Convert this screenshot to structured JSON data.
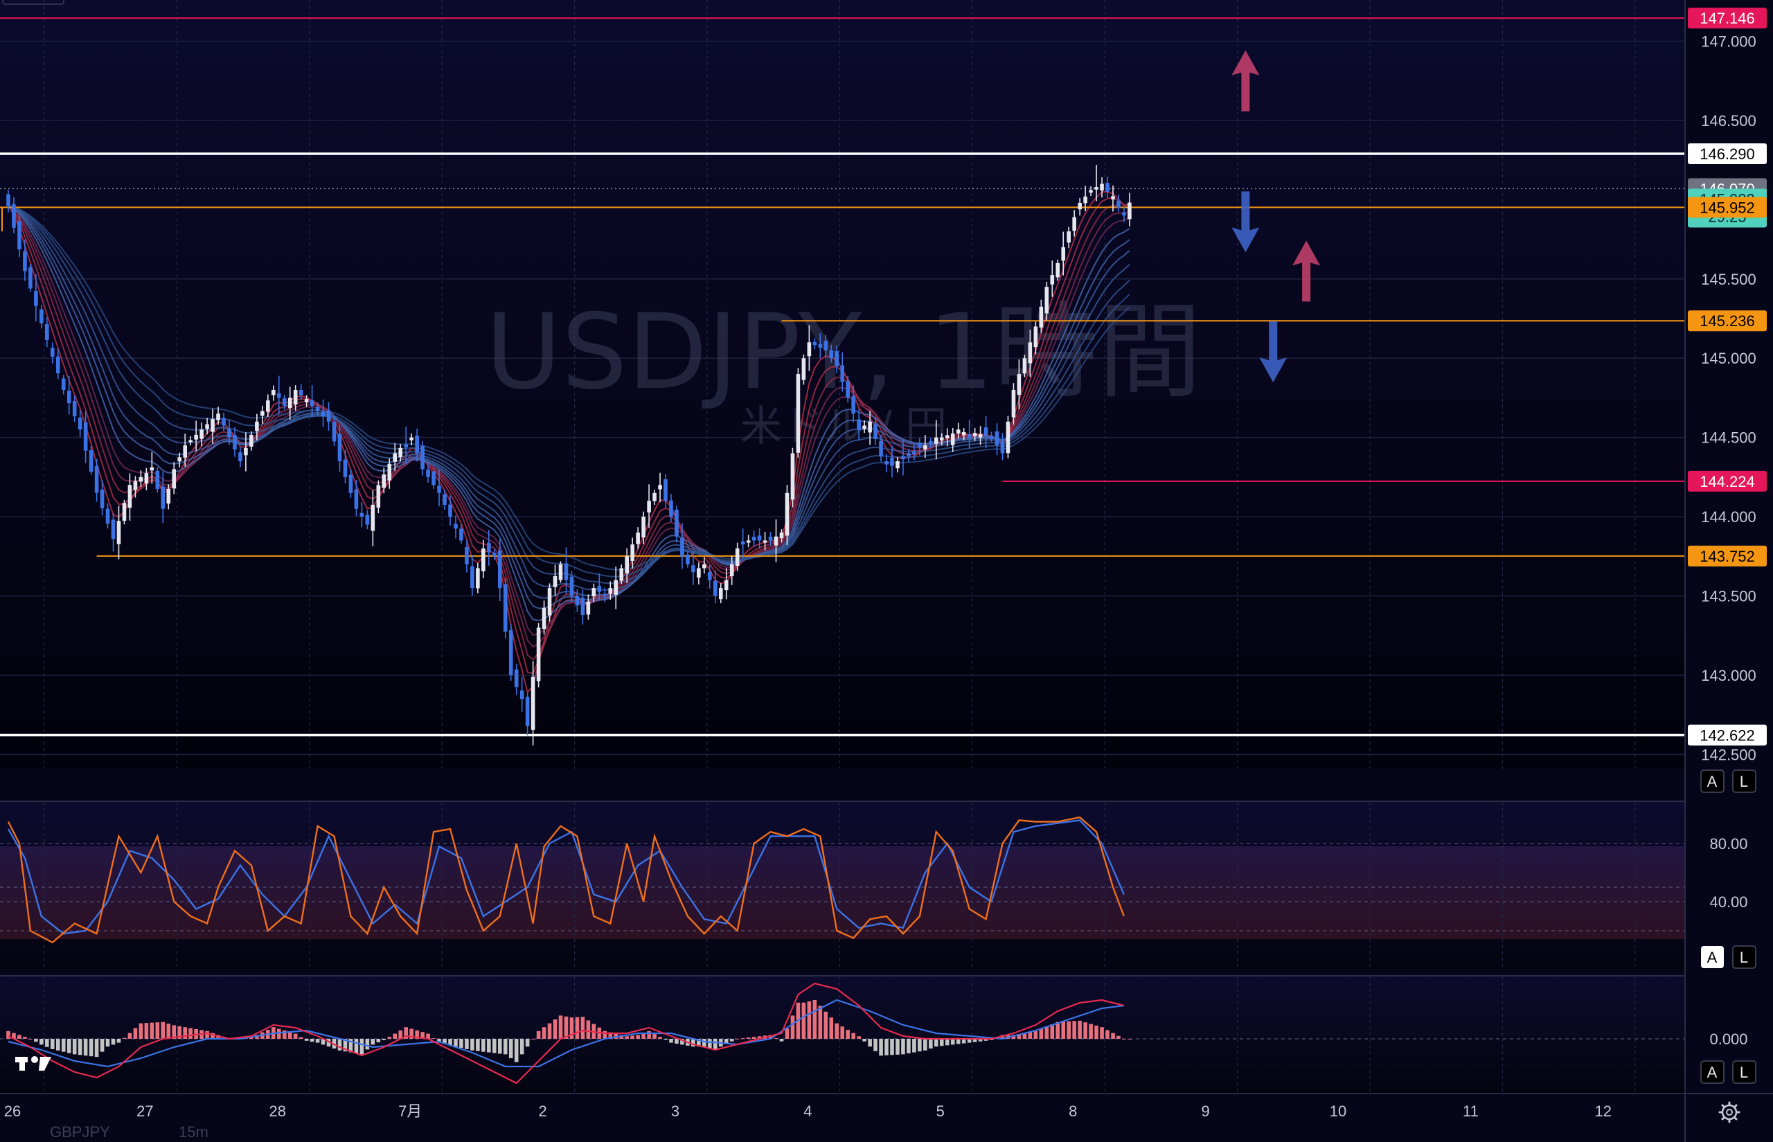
{
  "chart_data": {
    "type": "candlestick",
    "title": "USDJPY, 1時間",
    "subtitle": "米ドル / 円",
    "symbol": "USDJPY",
    "timeframe": "1時間",
    "price_range": [
      142.41,
      147.26
    ],
    "y_ticks": [
      "147.000",
      "146.500",
      "145.500",
      "145.000",
      "144.500",
      "144.000",
      "143.500",
      "143.000",
      "142.500"
    ],
    "x_labels": [
      "26",
      "27",
      "28",
      "7月",
      "2",
      "3",
      "4",
      "5",
      "8",
      "9",
      "10",
      "11",
      "12"
    ],
    "x_label_index": [
      0,
      24,
      48,
      72,
      96,
      120,
      144,
      168,
      192,
      216,
      240,
      264,
      288
    ],
    "price_tags": [
      {
        "label": "147.146",
        "value": 147.146,
        "color": "#e5175a",
        "text_color": "#ffffff",
        "line": "full"
      },
      {
        "label": "146.290",
        "value": 146.29,
        "color": "#ffffff",
        "text_color": "#000000",
        "line": "full"
      },
      {
        "label": "146.070",
        "value": 146.07,
        "color": "#6f7280",
        "text_color": "#ffffff",
        "line": "dotted"
      },
      {
        "label": "145.982",
        "sublabel": "29:25",
        "value": 145.982,
        "color": "#4fd1bd",
        "text_color": "#0b2a2a",
        "line": "none"
      },
      {
        "label": "145.952",
        "value": 145.952,
        "color": "#f59612",
        "text_color": "#000000",
        "line": "full"
      },
      {
        "label": "145.236",
        "value": 145.236,
        "color": "#f59612",
        "text_color": "#000000",
        "line": "partial"
      },
      {
        "label": "144.224",
        "value": 144.224,
        "color": "#e5175a",
        "text_color": "#ffffff",
        "line": "partial"
      },
      {
        "label": "143.752",
        "value": 143.752,
        "color": "#f59612",
        "text_color": "#000000",
        "line": "partial"
      },
      {
        "label": "142.622",
        "value": 142.622,
        "color": "#ffffff",
        "text_color": "#000000",
        "line": "full"
      }
    ],
    "line_start_index": {
      "145.236": 140,
      "144.224": 180,
      "143.752": 16
    },
    "arrows": [
      {
        "direction": "up",
        "color": "#c0406a",
        "price": 146.75,
        "index": 224
      },
      {
        "direction": "down",
        "color": "#3f63c8",
        "price": 145.86,
        "index": 224
      },
      {
        "direction": "up",
        "color": "#c0406a",
        "price": 145.55,
        "index": 235
      },
      {
        "direction": "down",
        "color": "#3f63c8",
        "price": 145.04,
        "index": 229
      }
    ],
    "candle_colors": {
      "up": "#e6e6ef",
      "down": "#3b73e6"
    },
    "anchors": [
      [
        0,
        145.96
      ],
      [
        3,
        145.55
      ],
      [
        6,
        145.22
      ],
      [
        10,
        144.8
      ],
      [
        13,
        144.55
      ],
      [
        16,
        144.15
      ],
      [
        19,
        143.86
      ],
      [
        22,
        144.2
      ],
      [
        26,
        144.3
      ],
      [
        28,
        144.05
      ],
      [
        30,
        144.3
      ],
      [
        32,
        144.45
      ],
      [
        35,
        144.55
      ],
      [
        38,
        144.65
      ],
      [
        42,
        144.35
      ],
      [
        45,
        144.6
      ],
      [
        48,
        144.8
      ],
      [
        50,
        144.7
      ],
      [
        52,
        144.8
      ],
      [
        55,
        144.7
      ],
      [
        58,
        144.6
      ],
      [
        60,
        144.35
      ],
      [
        63,
        144.05
      ],
      [
        65,
        143.95
      ],
      [
        67,
        144.2
      ],
      [
        70,
        144.4
      ],
      [
        73,
        144.5
      ],
      [
        75,
        144.3
      ],
      [
        78,
        144.15
      ],
      [
        80,
        144.0
      ],
      [
        82,
        143.85
      ],
      [
        84,
        143.55
      ],
      [
        86,
        143.8
      ],
      [
        88,
        143.75
      ],
      [
        89,
        143.55
      ],
      [
        91,
        143.0
      ],
      [
        93,
        142.85
      ],
      [
        94,
        142.68
      ],
      [
        96,
        143.3
      ],
      [
        98,
        143.55
      ],
      [
        100,
        143.7
      ],
      [
        102,
        143.5
      ],
      [
        104,
        143.38
      ],
      [
        106,
        143.55
      ],
      [
        108,
        143.5
      ],
      [
        110,
        143.6
      ],
      [
        112,
        143.75
      ],
      [
        114,
        143.9
      ],
      [
        116,
        144.1
      ],
      [
        118,
        144.2
      ],
      [
        120,
        144.0
      ],
      [
        122,
        143.75
      ],
      [
        124,
        143.65
      ],
      [
        126,
        143.7
      ],
      [
        128,
        143.5
      ],
      [
        130,
        143.6
      ],
      [
        132,
        143.8
      ],
      [
        134,
        143.85
      ],
      [
        136,
        143.85
      ],
      [
        138,
        143.85
      ],
      [
        140,
        143.9
      ],
      [
        142,
        144.4
      ],
      [
        143,
        144.9
      ],
      [
        145,
        145.1
      ],
      [
        148,
        145.05
      ],
      [
        150,
        144.95
      ],
      [
        152,
        144.75
      ],
      [
        154,
        144.55
      ],
      [
        156,
        144.6
      ],
      [
        158,
        144.38
      ],
      [
        160,
        144.32
      ],
      [
        162,
        144.38
      ],
      [
        164,
        144.42
      ],
      [
        166,
        144.45
      ],
      [
        168,
        144.5
      ],
      [
        170,
        144.5
      ],
      [
        172,
        144.55
      ],
      [
        174,
        144.5
      ],
      [
        176,
        144.52
      ],
      [
        178,
        144.5
      ],
      [
        180,
        144.4
      ],
      [
        182,
        144.8
      ],
      [
        184,
        145.0
      ],
      [
        186,
        145.2
      ],
      [
        188,
        145.45
      ],
      [
        190,
        145.6
      ],
      [
        192,
        145.8
      ],
      [
        194,
        145.98
      ],
      [
        196,
        146.06
      ],
      [
        198,
        146.1
      ],
      [
        200,
        146.0
      ],
      [
        202,
        145.9
      ],
      [
        203,
        145.982
      ]
    ],
    "stochastic": {
      "levels": [
        "80.00",
        "40.00"
      ],
      "range": [
        0,
        100
      ],
      "k_color": "#ef6f1c",
      "d_color": "#3b73e6",
      "k": [
        [
          0,
          95
        ],
        [
          2,
          80
        ],
        [
          4,
          20
        ],
        [
          8,
          12
        ],
        [
          12,
          25
        ],
        [
          16,
          18
        ],
        [
          20,
          85
        ],
        [
          24,
          60
        ],
        [
          27,
          85
        ],
        [
          30,
          40
        ],
        [
          33,
          30
        ],
        [
          36,
          25
        ],
        [
          38,
          50
        ],
        [
          41,
          75
        ],
        [
          44,
          65
        ],
        [
          47,
          20
        ],
        [
          50,
          30
        ],
        [
          53,
          25
        ],
        [
          56,
          92
        ],
        [
          59,
          85
        ],
        [
          62,
          30
        ],
        [
          65,
          18
        ],
        [
          68,
          50
        ],
        [
          71,
          30
        ],
        [
          74,
          18
        ],
        [
          77,
          88
        ],
        [
          80,
          90
        ],
        [
          83,
          48
        ],
        [
          86,
          20
        ],
        [
          89,
          30
        ],
        [
          92,
          80
        ],
        [
          95,
          25
        ],
        [
          97,
          78
        ],
        [
          100,
          92
        ],
        [
          103,
          85
        ],
        [
          106,
          30
        ],
        [
          109,
          25
        ],
        [
          112,
          80
        ],
        [
          115,
          40
        ],
        [
          117,
          85
        ],
        [
          120,
          55
        ],
        [
          123,
          30
        ],
        [
          126,
          18
        ],
        [
          129,
          30
        ],
        [
          132,
          20
        ],
        [
          135,
          80
        ],
        [
          138,
          88
        ],
        [
          141,
          85
        ],
        [
          144,
          90
        ],
        [
          147,
          85
        ],
        [
          150,
          20
        ],
        [
          153,
          15
        ],
        [
          156,
          28
        ],
        [
          159,
          30
        ],
        [
          162,
          18
        ],
        [
          165,
          30
        ],
        [
          168,
          88
        ],
        [
          171,
          75
        ],
        [
          174,
          35
        ],
        [
          177,
          28
        ],
        [
          180,
          80
        ],
        [
          183,
          96
        ],
        [
          186,
          95
        ],
        [
          190,
          95
        ],
        [
          194,
          98
        ],
        [
          197,
          88
        ],
        [
          200,
          50
        ],
        [
          202,
          30
        ]
      ],
      "d": [
        [
          0,
          90
        ],
        [
          3,
          70
        ],
        [
          6,
          30
        ],
        [
          10,
          18
        ],
        [
          14,
          20
        ],
        [
          18,
          40
        ],
        [
          22,
          75
        ],
        [
          26,
          70
        ],
        [
          30,
          55
        ],
        [
          34,
          35
        ],
        [
          38,
          42
        ],
        [
          42,
          65
        ],
        [
          46,
          45
        ],
        [
          50,
          30
        ],
        [
          54,
          50
        ],
        [
          58,
          85
        ],
        [
          62,
          55
        ],
        [
          66,
          25
        ],
        [
          70,
          38
        ],
        [
          74,
          25
        ],
        [
          78,
          78
        ],
        [
          82,
          70
        ],
        [
          86,
          30
        ],
        [
          90,
          40
        ],
        [
          94,
          50
        ],
        [
          98,
          80
        ],
        [
          102,
          88
        ],
        [
          106,
          45
        ],
        [
          110,
          40
        ],
        [
          114,
          65
        ],
        [
          118,
          75
        ],
        [
          122,
          50
        ],
        [
          126,
          28
        ],
        [
          130,
          25
        ],
        [
          134,
          55
        ],
        [
          138,
          85
        ],
        [
          142,
          85
        ],
        [
          146,
          85
        ],
        [
          150,
          35
        ],
        [
          154,
          22
        ],
        [
          158,
          25
        ],
        [
          162,
          22
        ],
        [
          166,
          60
        ],
        [
          170,
          80
        ],
        [
          174,
          50
        ],
        [
          178,
          40
        ],
        [
          182,
          88
        ],
        [
          186,
          92
        ],
        [
          190,
          94
        ],
        [
          194,
          96
        ],
        [
          198,
          80
        ],
        [
          202,
          45
        ]
      ]
    },
    "macd": {
      "zero_label": "0.000",
      "range": [
        -0.2,
        0.3
      ],
      "macd_color": "#e62b4f",
      "signal_color": "#3b73e6",
      "histogram_colors": {
        "positive": "#e8707d",
        "negative": "#c4c4c4"
      },
      "macd": [
        [
          0,
          0.01
        ],
        [
          4,
          -0.03
        ],
        [
          8,
          -0.08
        ],
        [
          12,
          -0.12
        ],
        [
          16,
          -0.14
        ],
        [
          20,
          -0.1
        ],
        [
          24,
          -0.03
        ],
        [
          28,
          0.0
        ],
        [
          32,
          0.01
        ],
        [
          36,
          0.02
        ],
        [
          40,
          0.0
        ],
        [
          44,
          0.01
        ],
        [
          48,
          0.05
        ],
        [
          52,
          0.04
        ],
        [
          56,
          0.01
        ],
        [
          60,
          -0.03
        ],
        [
          64,
          -0.06
        ],
        [
          68,
          -0.03
        ],
        [
          72,
          0.01
        ],
        [
          76,
          0.0
        ],
        [
          80,
          -0.04
        ],
        [
          84,
          -0.08
        ],
        [
          88,
          -0.12
        ],
        [
          92,
          -0.16
        ],
        [
          96,
          -0.08
        ],
        [
          100,
          0.0
        ],
        [
          104,
          0.03
        ],
        [
          108,
          0.02
        ],
        [
          112,
          0.02
        ],
        [
          116,
          0.04
        ],
        [
          120,
          0.01
        ],
        [
          124,
          -0.02
        ],
        [
          128,
          -0.04
        ],
        [
          132,
          -0.02
        ],
        [
          136,
          0.0
        ],
        [
          140,
          0.02
        ],
        [
          143,
          0.16
        ],
        [
          146,
          0.2
        ],
        [
          150,
          0.18
        ],
        [
          154,
          0.12
        ],
        [
          158,
          0.04
        ],
        [
          162,
          0.01
        ],
        [
          166,
          0.0
        ],
        [
          170,
          0.0
        ],
        [
          174,
          0.0
        ],
        [
          178,
          0.0
        ],
        [
          182,
          0.02
        ],
        [
          186,
          0.05
        ],
        [
          190,
          0.1
        ],
        [
          194,
          0.13
        ],
        [
          198,
          0.14
        ],
        [
          202,
          0.12
        ]
      ],
      "signal": [
        [
          0,
          -0.01
        ],
        [
          6,
          -0.04
        ],
        [
          12,
          -0.08
        ],
        [
          18,
          -0.1
        ],
        [
          24,
          -0.07
        ],
        [
          30,
          -0.03
        ],
        [
          36,
          0.0
        ],
        [
          42,
          0.0
        ],
        [
          48,
          0.02
        ],
        [
          54,
          0.03
        ],
        [
          60,
          0.0
        ],
        [
          66,
          -0.03
        ],
        [
          72,
          -0.02
        ],
        [
          78,
          -0.01
        ],
        [
          84,
          -0.05
        ],
        [
          90,
          -0.1
        ],
        [
          96,
          -0.1
        ],
        [
          102,
          -0.04
        ],
        [
          108,
          0.0
        ],
        [
          114,
          0.02
        ],
        [
          120,
          0.02
        ],
        [
          126,
          -0.01
        ],
        [
          132,
          -0.02
        ],
        [
          138,
          0.0
        ],
        [
          144,
          0.08
        ],
        [
          150,
          0.14
        ],
        [
          156,
          0.1
        ],
        [
          162,
          0.05
        ],
        [
          168,
          0.02
        ],
        [
          174,
          0.01
        ],
        [
          180,
          0.0
        ],
        [
          186,
          0.03
        ],
        [
          192,
          0.07
        ],
        [
          198,
          0.11
        ],
        [
          202,
          0.12
        ]
      ]
    },
    "ghost_text": [
      "GBPJPY",
      "15m"
    ]
  },
  "controls": {
    "a_label": "A",
    "l_label": "L",
    "settings_icon": "gear-icon",
    "logo_icon": "tradingview-logo-icon"
  }
}
